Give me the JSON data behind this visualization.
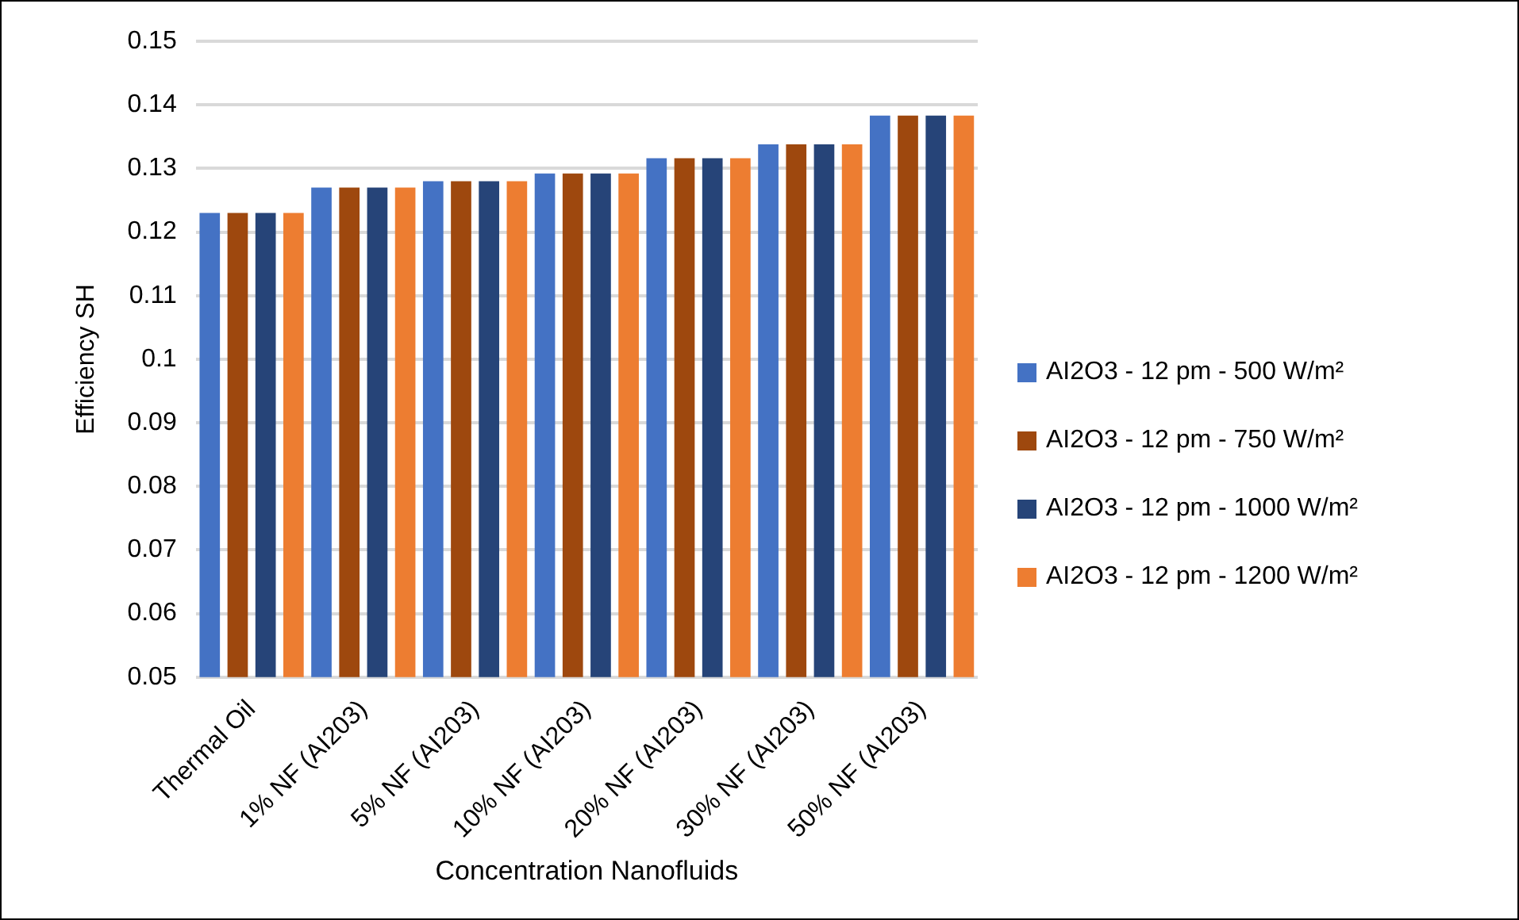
{
  "chart_data": {
    "type": "bar",
    "xlabel": "Concentration Nanofluids",
    "ylabel": "Efficiency SH",
    "categories": [
      "Thermal Oil",
      "1% NF (AI203)",
      "5% NF (AI203)",
      "10% NF (AI203)",
      "20% NF (AI203)",
      "30% NF (AI203)",
      "50% NF (AI203)"
    ],
    "series": [
      {
        "name": "AI2O3 - 12 pm - 500 W/m²",
        "color": "#4472c4",
        "values": [
          0.123,
          0.127,
          0.128,
          0.1292,
          0.1316,
          0.1338,
          0.1383
        ]
      },
      {
        "name": "AI2O3 - 12 pm - 750 W/m²",
        "color": "#9e480e",
        "values": [
          0.123,
          0.127,
          0.128,
          0.1292,
          0.1316,
          0.1338,
          0.1383
        ]
      },
      {
        "name": "AI2O3 - 12 pm - 1000 W/m²",
        "color": "#264478",
        "values": [
          0.123,
          0.127,
          0.128,
          0.1292,
          0.1316,
          0.1338,
          0.1383
        ]
      },
      {
        "name": "AI2O3 - 12 pm - 1200 W/m²",
        "color": "#ed7d31",
        "values": [
          0.123,
          0.127,
          0.128,
          0.1292,
          0.1316,
          0.1338,
          0.1383
        ]
      }
    ],
    "ylim": [
      0.05,
      0.15
    ],
    "yticks": [
      0.05,
      0.06,
      0.07,
      0.08,
      0.09,
      0.1,
      0.11,
      0.12,
      0.13,
      0.14,
      0.15
    ],
    "grid": "y",
    "legend": "right"
  }
}
